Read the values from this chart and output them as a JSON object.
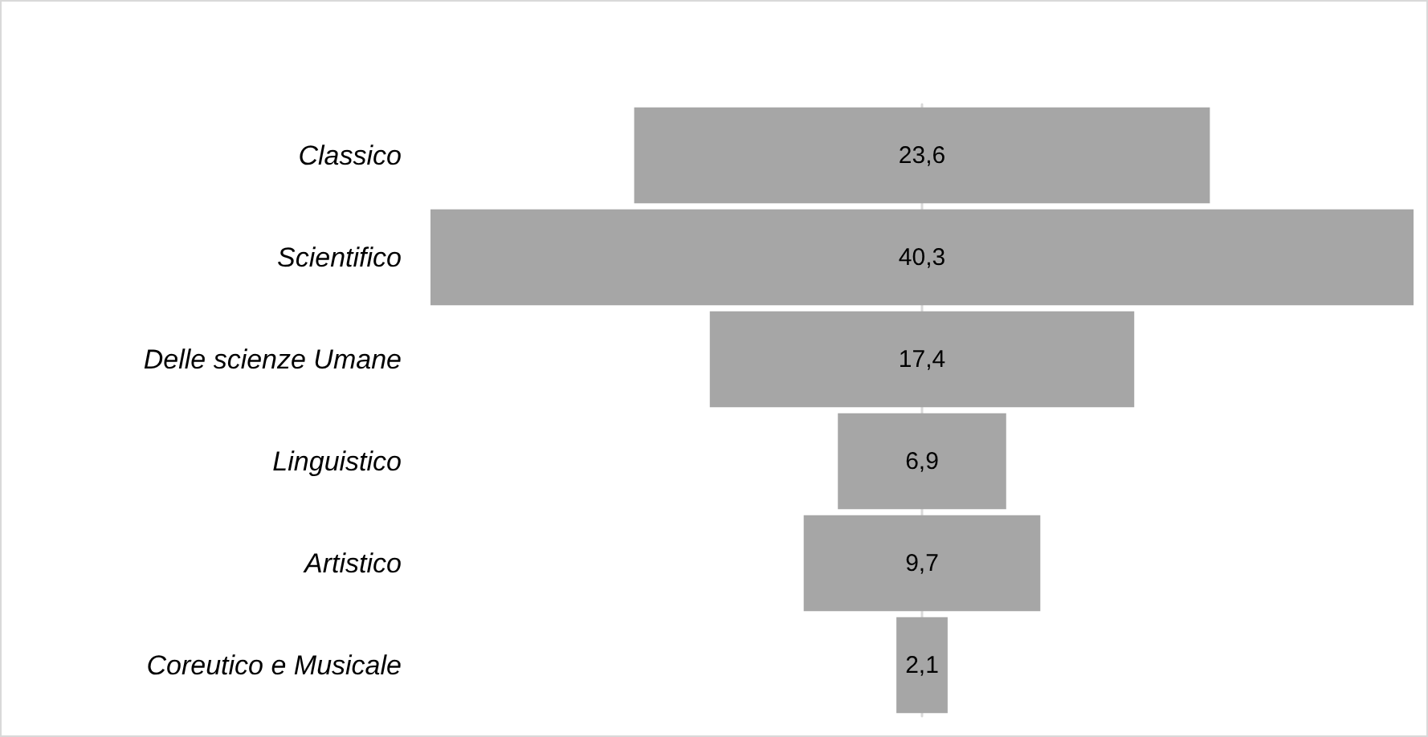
{
  "chart_data": {
    "type": "other",
    "categories": [
      "Classico",
      "Scientifico",
      "Delle scienze Umane",
      "Linguistico",
      "Artistico",
      "Coreutico e Musicale"
    ],
    "values": [
      23.6,
      40.3,
      17.4,
      6.9,
      9.7,
      2.1
    ],
    "value_labels": [
      "23,6",
      "40,3",
      "17,4",
      "6,9",
      "9,7",
      "2,1"
    ],
    "color": "#a6a6a6"
  }
}
